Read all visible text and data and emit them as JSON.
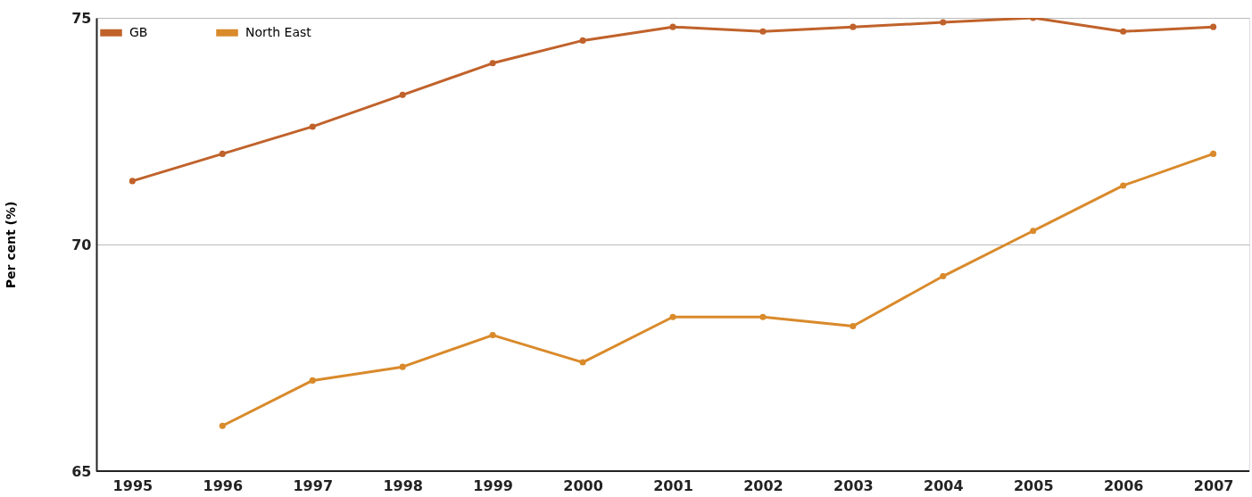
{
  "chart_data": {
    "type": "line",
    "ylabel": "Per cent (%)",
    "categories": [
      "1995",
      "1996",
      "1997",
      "1998",
      "1999",
      "2000",
      "2001",
      "2002",
      "2003",
      "2004",
      "2005",
      "2006",
      "2007"
    ],
    "series": [
      {
        "name": "GB",
        "color": "#c0622b",
        "values": [
          71.4,
          72.0,
          72.6,
          73.3,
          74.0,
          74.5,
          74.8,
          74.7,
          74.8,
          74.9,
          75.0,
          74.7,
          74.8
        ]
      },
      {
        "name": "North East",
        "color": "#d98a2b",
        "values": [
          null,
          66.0,
          67.0,
          67.3,
          68.0,
          67.4,
          68.4,
          68.4,
          68.2,
          69.3,
          70.3,
          71.3,
          72.0
        ]
      }
    ],
    "ylim": [
      65,
      75
    ],
    "yticks": [
      65,
      70,
      75
    ],
    "grid": "y",
    "legend": "top left",
    "marker": "circle",
    "line_style": "solid"
  }
}
